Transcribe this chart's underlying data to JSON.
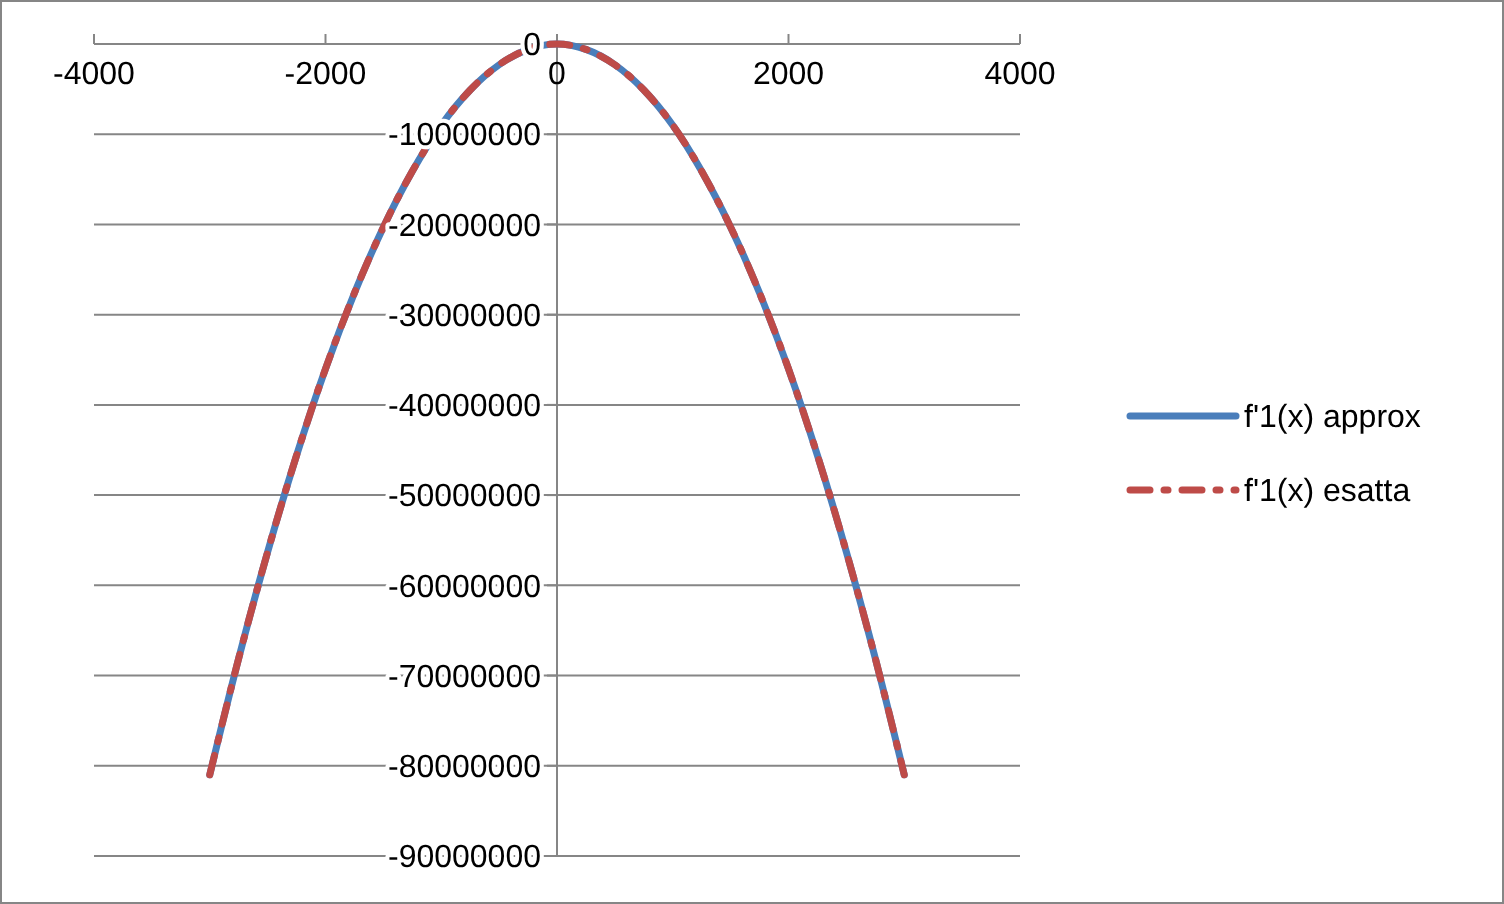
{
  "chart_data": {
    "type": "line",
    "x": [
      -3000,
      -2750,
      -2500,
      -2250,
      -2000,
      -1750,
      -1500,
      -1250,
      -1000,
      -750,
      -500,
      -250,
      0,
      250,
      500,
      750,
      1000,
      1250,
      1500,
      1750,
      2000,
      2250,
      2500,
      2750,
      3000
    ],
    "series": [
      {
        "name": "f'1(x) approx",
        "color": "#4a7ebb",
        "line_style": "solid",
        "values": [
          -81000000,
          -68100000,
          -56300000,
          -45600000,
          -36000000,
          -27600000,
          -20300000,
          -14100000,
          -9000000,
          -5100000,
          -2300000,
          -600000,
          0,
          -600000,
          -2300000,
          -5100000,
          -9000000,
          -14100000,
          -20300000,
          -27600000,
          -36000000,
          -45600000,
          -56300000,
          -68100000,
          -81000000
        ]
      },
      {
        "name": "f'1(x) esatta",
        "color": "#be4b48",
        "line_style": "dashed",
        "values": [
          -81000000,
          -68100000,
          -56300000,
          -45600000,
          -36000000,
          -27600000,
          -20300000,
          -14100000,
          -9000000,
          -5100000,
          -2300000,
          -600000,
          0,
          -600000,
          -2300000,
          -5100000,
          -9000000,
          -14100000,
          -20300000,
          -27600000,
          -36000000,
          -45600000,
          -56300000,
          -68100000,
          -81000000
        ]
      }
    ],
    "xlim": [
      -4000,
      4000
    ],
    "xticks": [
      -4000,
      -2000,
      0,
      2000,
      4000
    ],
    "ylim": [
      -90000000,
      0
    ],
    "yticks": [
      -90000000,
      -80000000,
      -70000000,
      -60000000,
      -50000000,
      -40000000,
      -30000000,
      -20000000,
      -10000000,
      0
    ],
    "grid": "y",
    "legend": "right",
    "marker": "none"
  }
}
